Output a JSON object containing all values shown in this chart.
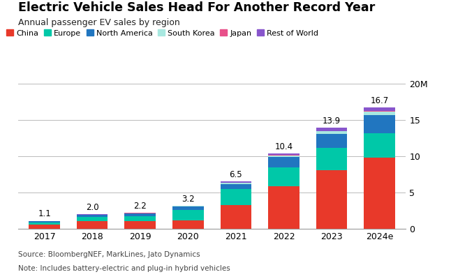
{
  "title": "Electric Vehicle Sales Head For Another Record Year",
  "subtitle": "Annual passenger EV sales by region",
  "years": [
    "2017",
    "2018",
    "2019",
    "2020",
    "2021",
    "2022",
    "2023",
    "2024e"
  ],
  "totals": [
    1.1,
    2.0,
    2.2,
    3.2,
    6.5,
    10.4,
    13.9,
    16.7
  ],
  "regions": [
    "China",
    "Europe",
    "North America",
    "South Korea",
    "Japan",
    "Rest of World"
  ],
  "colors": [
    "#e8392a",
    "#00c8a8",
    "#2176c0",
    "#a8e8e0",
    "#e8508a",
    "#8855cc"
  ],
  "data": {
    "China": [
      0.55,
      1.05,
      1.05,
      1.2,
      3.3,
      5.9,
      8.1,
      9.8
    ],
    "Europe": [
      0.32,
      0.58,
      0.72,
      1.38,
      2.15,
      2.6,
      3.1,
      3.4
    ],
    "North America": [
      0.16,
      0.26,
      0.3,
      0.48,
      0.75,
      1.4,
      1.85,
      2.5
    ],
    "South Korea": [
      0.03,
      0.05,
      0.07,
      0.07,
      0.12,
      0.22,
      0.38,
      0.45
    ],
    "Japan": [
      0.02,
      0.03,
      0.03,
      0.04,
      0.05,
      0.06,
      0.07,
      0.07
    ],
    "Rest of World": [
      0.02,
      0.03,
      0.03,
      0.03,
      0.13,
      0.22,
      0.4,
      0.48
    ]
  },
  "ylim": [
    0,
    20
  ],
  "yticks": [
    0,
    5,
    10,
    15,
    20
  ],
  "ytick_labels": [
    "0",
    "5",
    "10",
    "15",
    "20M"
  ],
  "footnote1": "Source: BloombergNEF, MarkLines, Jato Dynamics",
  "footnote2": "Note: Includes battery-electric and plug-in hybrid vehicles",
  "background_color": "#ffffff",
  "bar_width": 0.65
}
